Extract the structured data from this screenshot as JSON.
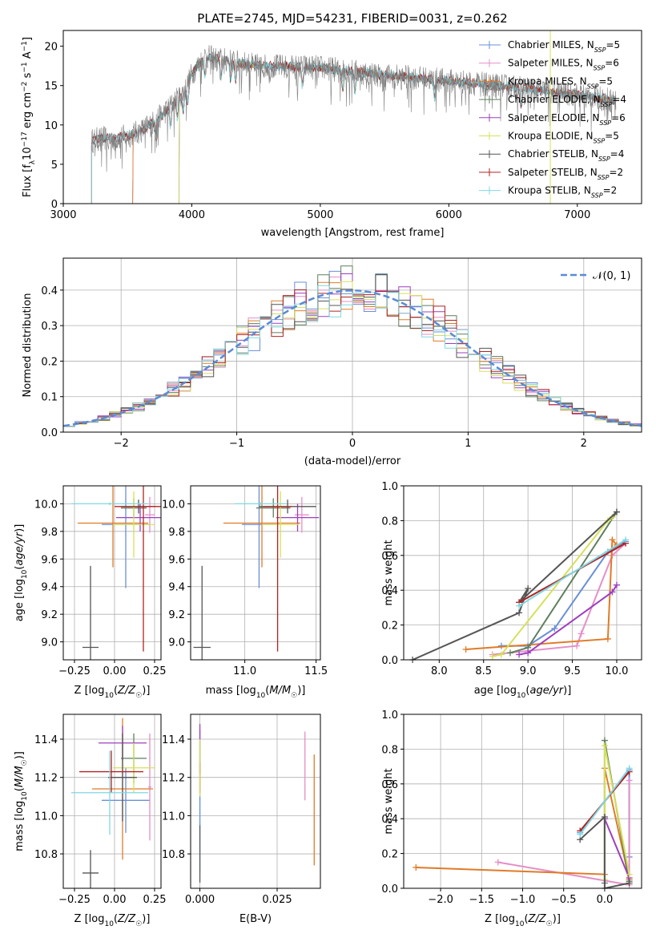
{
  "chart_data": [
    {
      "type": "line",
      "title": "PLATE=2745, MJD=54231, FIBERID=0031, z=0.262",
      "xlabel": "wavelength [Angstrom, rest frame]",
      "ylabel": "Flux [fλ10⁻¹⁷ erg cm⁻² s⁻¹ A⁻¹]",
      "xlim": [
        3000,
        7500
      ],
      "ylim": [
        0,
        22
      ],
      "xticks": [
        "3000",
        "4000",
        "5000",
        "6000",
        "7000"
      ],
      "yticks": [
        "0",
        "5",
        "10",
        "15",
        "20"
      ],
      "grid": false,
      "legend_position": "right",
      "series": [
        {
          "name": "Chabrier MILES, N_SSP=5",
          "color": "#6a8fd8",
          "start": 3540
        },
        {
          "name": "Salpeter MILES, N_SSP=6",
          "color": "#e48fc8",
          "start": 3540
        },
        {
          "name": "Kroupa MILES, N_SSP=5",
          "color": "#e07b28",
          "start": 3540
        },
        {
          "name": "Chabrier ELODIE, N_SSP=4",
          "color": "#5f7f5f",
          "start": 3900
        },
        {
          "name": "Salpeter ELODIE, N_SSP=6",
          "color": "#9d3fbf",
          "start": 3900
        },
        {
          "name": "Kroupa ELODIE, N_SSP=5",
          "color": "#d6e05a",
          "start": 3900
        },
        {
          "name": "Chabrier STELIB, N_SSP=4",
          "color": "#555555",
          "start": 3220
        },
        {
          "name": "Salpeter STELIB, N_SSP=2",
          "color": "#b22222",
          "start": 3220
        },
        {
          "name": "Kroupa STELIB, N_SSP=2",
          "color": "#7fd8e0",
          "start": 3220
        }
      ],
      "continuum": {
        "x": [
          3220,
          3300,
          3400,
          3500,
          3600,
          3700,
          3800,
          3900,
          3950,
          4000,
          4100,
          4300,
          4500,
          5000,
          5500,
          6000,
          6500,
          7000,
          7300
        ],
        "y": [
          8,
          8.3,
          8.3,
          8.6,
          9.2,
          10.3,
          11.8,
          13.5,
          14.5,
          16.5,
          18.7,
          18.1,
          17.5,
          17.3,
          16.3,
          15.6,
          14.8,
          13.8,
          13.1
        ]
      }
    },
    {
      "type": "histogram",
      "xlabel": "(data-model)/error",
      "ylabel": "Normed distribution",
      "xlim": [
        -2.5,
        2.5
      ],
      "ylim": [
        0,
        0.49
      ],
      "xticks": [
        "−2",
        "−1",
        "0",
        "1",
        "2"
      ],
      "yticks": [
        "0.0",
        "0.1",
        "0.2",
        "0.3",
        "0.4"
      ],
      "grid": true,
      "legend_position": "top-right",
      "legend_label": "𝒩(0, 1)",
      "reference_curve": "normal(0, 1)",
      "bin_width": 0.1
    },
    {
      "type": "errorbar",
      "xlabel": "Z [log₁₀(Z/Z☉)]",
      "ylabel": "age  [log₁₀(age/yr)]",
      "xlim": [
        -0.32,
        0.29
      ],
      "ylim": [
        8.87,
        10.13
      ],
      "xticks": [
        "−0.25",
        "0.00",
        "0.25"
      ],
      "yticks": [
        "9.0",
        "9.2",
        "9.4",
        "9.6",
        "9.8",
        "10.0"
      ],
      "grid": true,
      "points": [
        {
          "x": 0.07,
          "xerr": 0.15,
          "y": 9.85,
          "yerr": 0.46,
          "color": "#6a8fd8"
        },
        {
          "x": 0.22,
          "xerr": 0.03,
          "y": 9.92,
          "yerr": 0.13,
          "color": "#e48fc8"
        },
        {
          "x": -0.01,
          "xerr": 0.22,
          "y": 9.86,
          "yerr": 0.32,
          "color": "#e07b28"
        },
        {
          "x": 0.12,
          "xerr": 0.08,
          "y": 9.97,
          "yerr": 0.07,
          "color": "#5f7f5f"
        },
        {
          "x": 0.16,
          "xerr": 0.15,
          "y": 9.9,
          "yerr": 0.1,
          "color": "#9d3fbf"
        },
        {
          "x": 0.12,
          "xerr": 0.13,
          "y": 9.85,
          "yerr": 0.24,
          "color": "#d6e05a"
        },
        {
          "x": 0.15,
          "xerr": 0.11,
          "y": 9.98,
          "yerr": 0.05,
          "color": "#555555"
        },
        {
          "x": 0.18,
          "xerr": 0.18,
          "y": 9.98,
          "yerr": 1.05,
          "color": "#b22222"
        },
        {
          "x": -0.03,
          "xerr": 0.24,
          "y": 10.0,
          "yerr": 0.01,
          "color": "#7fd8e0"
        },
        {
          "x": -0.15,
          "xerr": 0.05,
          "y": 8.96,
          "yerr": 0.59,
          "color": "#555555"
        }
      ]
    },
    {
      "type": "errorbar",
      "xlabel": "mass [log₁₀(M/M☉)]",
      "xlim": [
        10.62,
        11.53
      ],
      "ylim": [
        8.87,
        10.13
      ],
      "xticks": [
        "11.0",
        "11.5"
      ],
      "yticks": [
        "9.0",
        "9.2",
        "9.4",
        "9.6",
        "9.8",
        "10.0"
      ],
      "grid": true,
      "points": [
        {
          "x": 11.1,
          "xerr": 0.12,
          "y": 9.85,
          "yerr": 0.46,
          "color": "#6a8fd8"
        },
        {
          "x": 11.4,
          "xerr": 0.05,
          "y": 9.92,
          "yerr": 0.13,
          "color": "#e48fc8"
        },
        {
          "x": 11.12,
          "xerr": 0.27,
          "y": 9.86,
          "yerr": 0.32,
          "color": "#e07b28"
        },
        {
          "x": 11.2,
          "xerr": 0.12,
          "y": 9.97,
          "yerr": 0.07,
          "color": "#5f7f5f"
        },
        {
          "x": 11.37,
          "xerr": 0.15,
          "y": 9.9,
          "yerr": 0.1,
          "color": "#9d3fbf"
        },
        {
          "x": 11.25,
          "xerr": 0.13,
          "y": 9.85,
          "yerr": 0.24,
          "color": "#d6e05a"
        },
        {
          "x": 11.3,
          "xerr": 0.2,
          "y": 9.98,
          "yerr": 0.05,
          "color": "#555555"
        },
        {
          "x": 11.23,
          "xerr": 0.1,
          "y": 9.98,
          "yerr": 1.05,
          "color": "#b22222"
        },
        {
          "x": 11.11,
          "xerr": 0.18,
          "y": 10.0,
          "yerr": 0.01,
          "color": "#7fd8e0"
        },
        {
          "x": 10.7,
          "xerr": 0.06,
          "y": 8.96,
          "yerr": 0.59,
          "color": "#555555"
        }
      ]
    },
    {
      "type": "line",
      "xlabel": "age  [log₁₀(age/yr)]",
      "ylabel": "mass weight",
      "xlim": [
        7.6,
        10.28
      ],
      "ylim": [
        0,
        1
      ],
      "xticks": [
        "8.0",
        "8.5",
        "9.0",
        "9.5",
        "10.0"
      ],
      "yticks": [
        "0.0",
        "0.2",
        "0.4",
        "0.6",
        "0.8",
        "1.0"
      ],
      "grid": true,
      "series": [
        {
          "color": "#6a8fd8",
          "x": [
            8.7,
            9.0,
            9.3,
            9.9,
            10.1
          ],
          "y": [
            0.08,
            0.08,
            0.18,
            0.62,
            0.68
          ]
        },
        {
          "color": "#e48fc8",
          "x": [
            8.6,
            9.55,
            9.6,
            9.95,
            10.1
          ],
          "y": [
            0.03,
            0.08,
            0.15,
            0.6,
            0.67
          ]
        },
        {
          "color": "#e07b28",
          "x": [
            8.3,
            9.9,
            9.95,
            10.0
          ],
          "y": [
            0.06,
            0.12,
            0.69,
            0.66
          ]
        },
        {
          "color": "#5f7f5f",
          "x": [
            8.8,
            9.0,
            10.0
          ],
          "y": [
            0.04,
            0.07,
            0.85
          ]
        },
        {
          "color": "#9d3fbf",
          "x": [
            8.9,
            9.0,
            9.95,
            10.0
          ],
          "y": [
            0.03,
            0.04,
            0.39,
            0.43
          ]
        },
        {
          "color": "#d6e05a",
          "x": [
            8.6,
            8.7,
            9.9,
            9.95
          ],
          "y": [
            0.02,
            0.03,
            0.8,
            0.82
          ]
        },
        {
          "color": "#555555",
          "x": [
            7.7,
            8.9,
            9.0,
            8.9,
            10.0
          ],
          "y": [
            0.0,
            0.27,
            0.41,
            0.33,
            0.85
          ]
        },
        {
          "color": "#b22222",
          "x": [
            8.9,
            10.1
          ],
          "y": [
            0.33,
            0.67
          ]
        },
        {
          "color": "#7fd8e0",
          "x": [
            8.9,
            10.1
          ],
          "y": [
            0.31,
            0.69
          ]
        }
      ]
    },
    {
      "type": "errorbar",
      "xlabel": "Z [log₁₀(Z/Z☉)]",
      "ylabel": "mass [log₁₀(M/M☉)]",
      "xlim": [
        -0.32,
        0.29
      ],
      "ylim": [
        10.62,
        11.53
      ],
      "xticks": [
        "−0.25",
        "0.00",
        "0.25"
      ],
      "yticks": [
        "10.8",
        "11.0",
        "11.2",
        "11.4"
      ],
      "grid": true,
      "points": [
        {
          "x": 0.07,
          "xerr": 0.15,
          "y": 11.08,
          "yerr": 0.17,
          "color": "#6a8fd8"
        },
        {
          "x": 0.22,
          "xerr": 0.01,
          "y": 11.15,
          "yerr": 0.28,
          "color": "#e48fc8"
        },
        {
          "x": 0.05,
          "xerr": 0.19,
          "y": 11.14,
          "yerr": 0.37,
          "color": "#e07b28"
        },
        {
          "x": 0.12,
          "xerr": 0.08,
          "y": 11.3,
          "yerr": 0.13,
          "color": "#5f7f5f"
        },
        {
          "x": 0.05,
          "xerr": 0.15,
          "y": 11.38,
          "yerr": 0.09,
          "color": "#9d3fbf"
        },
        {
          "x": 0.12,
          "xerr": 0.13,
          "y": 11.25,
          "yerr": 0.13,
          "color": "#d6e05a"
        },
        {
          "x": 0.05,
          "xerr": 0.09,
          "y": 11.2,
          "yerr": 0.23,
          "color": "#555555"
        },
        {
          "x": -0.02,
          "xerr": 0.2,
          "y": 11.23,
          "yerr": 0.11,
          "color": "#b22222"
        },
        {
          "x": -0.03,
          "xerr": 0.24,
          "y": 11.12,
          "yerr": 0.22,
          "color": "#7fd8e0"
        },
        {
          "x": -0.15,
          "xerr": 0.05,
          "y": 10.7,
          "yerr": 0.12,
          "color": "#555555"
        }
      ]
    },
    {
      "type": "errorbar",
      "xlabel": "E(B-V)",
      "xlim": [
        -0.003,
        0.039
      ],
      "ylim": [
        10.62,
        11.53
      ],
      "xticks": [
        "0.000",
        "0.025"
      ],
      "yticks": [
        "10.8",
        "11.0",
        "11.2",
        "11.4"
      ],
      "grid": true,
      "points": [
        {
          "x": 0.0,
          "y": 10.9,
          "yerr": 0.2,
          "color": "#7fd8e0"
        },
        {
          "x": 0.0,
          "y": 11.2,
          "yerr": 0.25,
          "color": "#6a8fd8"
        },
        {
          "x": 0.0,
          "y": 11.35,
          "yerr": 0.13,
          "color": "#9d3fbf"
        },
        {
          "x": 0.0,
          "y": 11.2,
          "yerr": 0.08,
          "color": "#b22222"
        },
        {
          "x": 0.0,
          "y": 10.8,
          "yerr": 0.15,
          "color": "#555555"
        },
        {
          "x": 0.0,
          "y": 11.25,
          "yerr": 0.15,
          "color": "#d6e05a"
        },
        {
          "x": 0.034,
          "y": 11.26,
          "yerr": 0.18,
          "color": "#e48fc8"
        },
        {
          "x": 0.037,
          "y": 11.03,
          "yerr": 0.29,
          "color": "#e07b28"
        }
      ]
    },
    {
      "type": "line",
      "xlabel": "Z [log₁₀(Z/Z☉)]",
      "ylabel": "mass weight",
      "xlim": [
        -2.45,
        0.45
      ],
      "ylim": [
        0,
        1
      ],
      "xticks": [
        "−2.0",
        "−1.5",
        "−1.0",
        "−0.5",
        "0.0"
      ],
      "yticks": [
        "0.0",
        "0.2",
        "0.4",
        "0.6",
        "0.8",
        "1.0"
      ],
      "grid": true,
      "series": [
        {
          "color": "#6a8fd8",
          "x": [
            -0.3,
            0.3,
            0.3
          ],
          "y": [
            0.32,
            0.68,
            0.18
          ]
        },
        {
          "color": "#e48fc8",
          "x": [
            -1.3,
            0.3,
            0.3
          ],
          "y": [
            0.15,
            0.02,
            0.62
          ]
        },
        {
          "color": "#e07b28",
          "x": [
            -2.3,
            0.0,
            0.0,
            0.3
          ],
          "y": [
            0.12,
            0.08,
            0.69,
            0.05
          ]
        },
        {
          "color": "#5f7f5f",
          "x": [
            0.0,
            0.0,
            0.3
          ],
          "y": [
            0.03,
            0.85,
            0.04
          ]
        },
        {
          "color": "#9d3fbf",
          "x": [
            0.0,
            0.3
          ],
          "y": [
            0.4,
            0.06
          ]
        },
        {
          "color": "#d6e05a",
          "x": [
            0.0,
            0.0,
            0.3
          ],
          "y": [
            0.05,
            0.82,
            0.08
          ]
        },
        {
          "color": "#555555",
          "x": [
            -0.3,
            0.0,
            0.0,
            0.3
          ],
          "y": [
            0.28,
            0.41,
            0.0,
            0.03
          ]
        },
        {
          "color": "#b22222",
          "x": [
            -0.3,
            0.3
          ],
          "y": [
            0.33,
            0.67
          ]
        },
        {
          "color": "#7fd8e0",
          "x": [
            -0.3,
            0.3
          ],
          "y": [
            0.31,
            0.69
          ]
        }
      ]
    }
  ]
}
